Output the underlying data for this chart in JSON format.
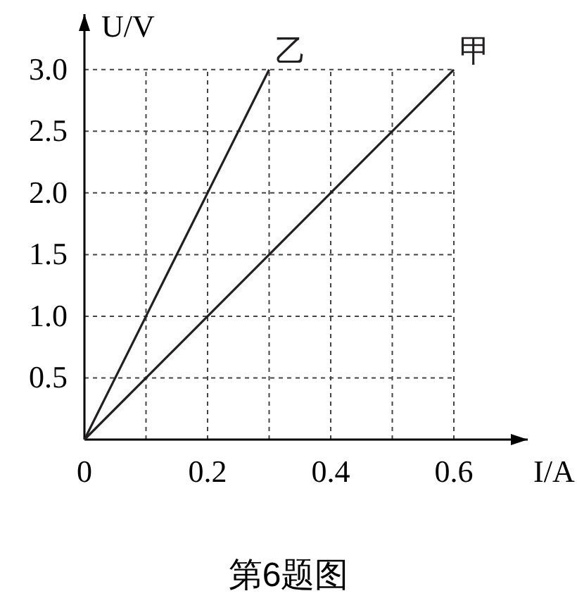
{
  "chart_data": {
    "type": "line",
    "xlabel": "I/A",
    "ylabel": "U/V",
    "xlim": [
      0,
      0.72
    ],
    "ylim": [
      0,
      3.45
    ],
    "xticks": [
      0,
      {
        "value": 0.1,
        "label": null
      },
      0.2,
      {
        "value": 0.3,
        "label": null
      },
      0.4,
      {
        "value": 0.5,
        "label": null
      },
      0.6
    ],
    "yticks": [
      0.5,
      {
        "value": 1,
        "label": "1.0"
      },
      1.5,
      {
        "value": 2,
        "label": "2.0"
      },
      2.5,
      {
        "value": 3,
        "label": "3.0"
      }
    ],
    "grid": true,
    "line_style": "solid",
    "marker": "none",
    "series": [
      {
        "name": "乙",
        "color": "#231f20",
        "x": [
          0,
          0.3
        ],
        "values": [
          0,
          3.0
        ]
      },
      {
        "name": "甲",
        "color": "#231f20",
        "x": [
          0,
          0.6
        ],
        "values": [
          0,
          3.0
        ]
      }
    ],
    "annotations": [
      "第6题图"
    ]
  }
}
